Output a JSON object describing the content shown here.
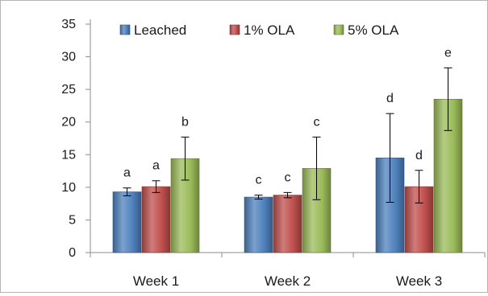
{
  "chart_data": {
    "type": "bar",
    "title": "",
    "xlabel": "",
    "ylabel": "",
    "ylim": [
      0,
      35
    ],
    "yticks": [
      0,
      5,
      10,
      15,
      20,
      25,
      30,
      35
    ],
    "grid": false,
    "legend_position": "top-left",
    "categories": [
      "Week 1",
      "Week 2",
      "Week 3"
    ],
    "series": [
      {
        "name": "Leached",
        "color": "#4f81bd",
        "values": [
          9.3,
          8.5,
          14.5
        ],
        "errors": [
          0.6,
          0.3,
          6.8
        ],
        "labels": [
          "a",
          "c",
          "d"
        ]
      },
      {
        "name": "1% OLA",
        "color": "#c0504d",
        "values": [
          10.1,
          8.8,
          10.1
        ],
        "errors": [
          0.9,
          0.4,
          2.5
        ],
        "labels": [
          "a",
          "c",
          "d"
        ]
      },
      {
        "name": "5% OLA",
        "color": "#9bbb59",
        "values": [
          14.4,
          12.9,
          23.5
        ],
        "errors": [
          3.3,
          4.8,
          4.8
        ],
        "labels": [
          "b",
          "c",
          "e"
        ]
      }
    ]
  }
}
